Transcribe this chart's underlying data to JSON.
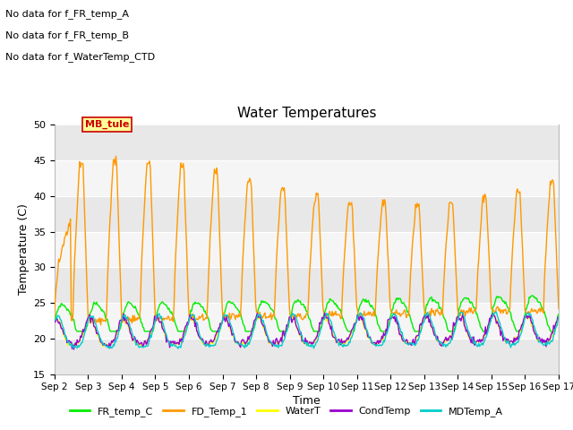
{
  "title": "Water Temperatures",
  "xlabel": "Time",
  "ylabel": "Temperature (C)",
  "ylim": [
    15,
    50
  ],
  "yticks": [
    15,
    20,
    25,
    30,
    35,
    40,
    45,
    50
  ],
  "background_color": "#ffffff",
  "plot_bg_color": "#f5f5f5",
  "band_colors": [
    "#e8e8e8",
    "#f5f5f5"
  ],
  "no_data_texts": [
    "No data for f_FR_temp_A",
    "No data for f_FR_temp_B",
    "No data for f_WaterTemp_CTD"
  ],
  "annotation_text": "MB_tule",
  "annotation_color": "#cc0000",
  "annotation_bg": "#ffff99",
  "annotation_border": "#cc0000",
  "legend_entries": [
    {
      "label": "FR_temp_C",
      "color": "#00ee00"
    },
    {
      "label": "FD_Temp_1",
      "color": "#ff9900"
    },
    {
      "label": "WaterT",
      "color": "#ffff00"
    },
    {
      "label": "CondTemp",
      "color": "#9900cc"
    },
    {
      "label": "MDTemp_A",
      "color": "#00cccc"
    }
  ]
}
